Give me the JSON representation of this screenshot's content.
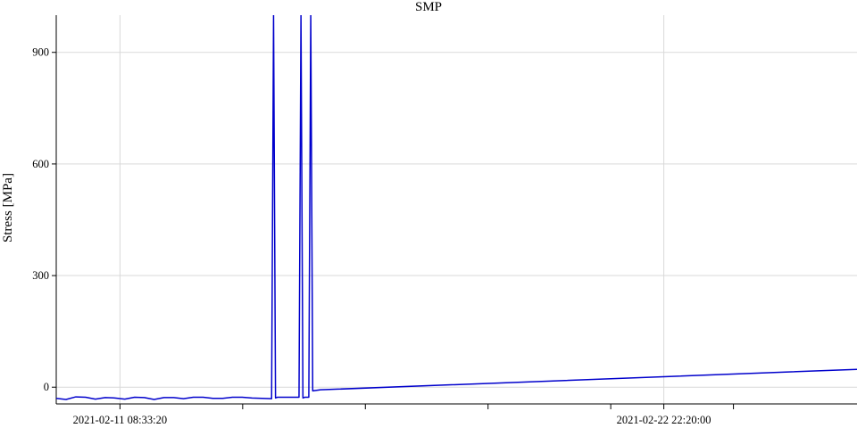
{
  "chart_data": {
    "type": "line",
    "title": "SMP",
    "xlabel": "",
    "ylabel": "Stress [MPa]",
    "y_ticks": [
      0,
      300,
      600,
      900
    ],
    "x_tick_labels": [
      {
        "value": "2021-02-11 08:33:20",
        "label": "2021-02-11 08:33:20"
      },
      {
        "value": "2021-02-22 22:20:00",
        "label": "2021-02-22 22:20:00"
      }
    ],
    "x_minor_ticks": [
      "2021-02-13 23:13:20",
      "2021-02-16 13:53:20",
      "2021-02-19 04:33:20",
      "2021-02-21 19:13:20",
      "2021-02-24 09:53:20"
    ],
    "xlim": [
      "2021-02-10 00:00:00",
      "2021-02-27 01:00:00"
    ],
    "ylim": [
      -45,
      1000
    ],
    "grid": true,
    "series_color": "#0000cc",
    "series": [
      {
        "x": [
          "2021-02-10 00:00:00",
          "2021-02-10 05:00:00",
          "2021-02-10 10:00:00",
          "2021-02-10 15:00:00",
          "2021-02-10 20:00:00",
          "2021-02-11 01:00:00",
          "2021-02-11 06:00:00",
          "2021-02-11 11:00:00",
          "2021-02-11 16:00:00",
          "2021-02-11 21:00:00",
          "2021-02-12 02:00:00",
          "2021-02-12 07:00:00",
          "2021-02-12 12:00:00",
          "2021-02-12 17:00:00",
          "2021-02-12 22:00:00",
          "2021-02-13 03:00:00",
          "2021-02-13 08:00:00",
          "2021-02-13 13:00:00",
          "2021-02-13 18:00:00",
          "2021-02-13 23:00:00",
          "2021-02-14 04:00:00",
          "2021-02-14 09:00:00",
          "2021-02-14 14:00:00",
          "2021-02-14 15:00:00",
          "2021-02-14 16:00:00",
          "2021-02-14 17:00:00",
          "2021-02-15 04:00:00",
          "2021-02-15 05:00:00",
          "2021-02-15 06:00:00",
          "2021-02-15 07:00:00",
          "2021-02-15 09:00:00",
          "2021-02-15 10:00:00",
          "2021-02-15 11:00:00",
          "2021-02-15 15:00:00",
          "2021-02-27 01:00:00"
        ],
        "y": [
          -30,
          -33,
          -26,
          -27,
          -32,
          -28,
          -29,
          -32,
          -27,
          -28,
          -33,
          -28,
          -28,
          -31,
          -27,
          -27,
          -30,
          -30,
          -27,
          -27,
          -29,
          -30,
          -31,
          1000,
          -29,
          -27,
          -27,
          1000,
          -29,
          -27,
          -27,
          1000,
          -10,
          -7,
          48
        ]
      }
    ]
  }
}
